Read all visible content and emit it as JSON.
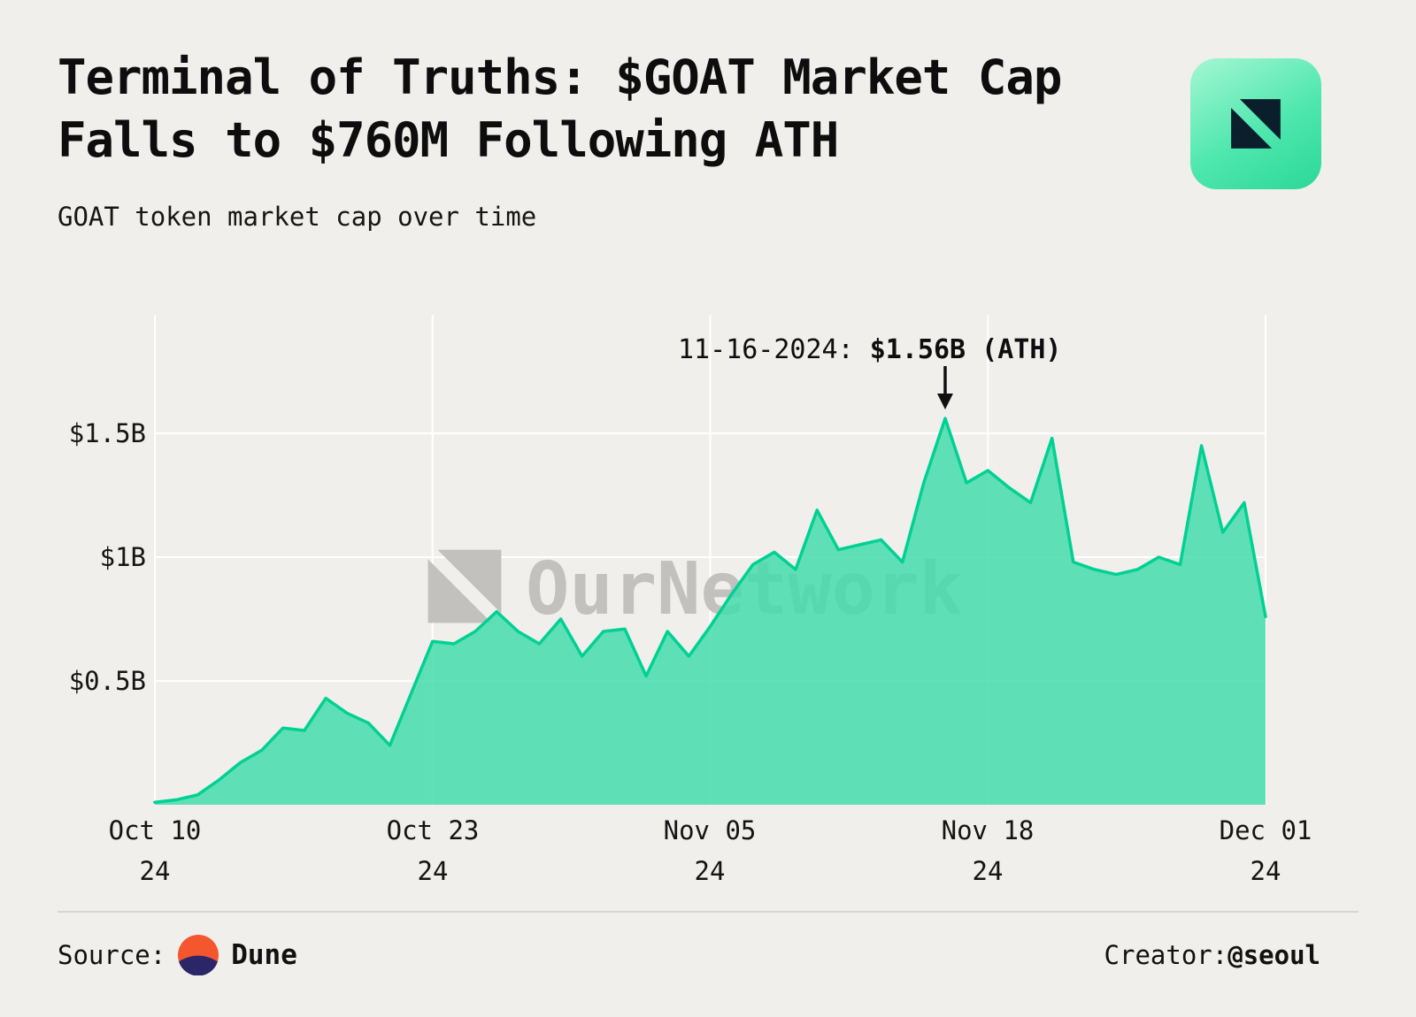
{
  "header": {
    "title_bold": "Terminal of Truths:",
    "title_rest": " $GOAT Market Cap Falls to $760M Following ATH",
    "subtitle": "GOAT token market cap over time"
  },
  "branding": {
    "logo_icon": "ournetwork-logo",
    "watermark_text": "OurNetwork"
  },
  "annotation": {
    "prefix": "11-16-2024: ",
    "value": "$1.56B (ATH)"
  },
  "footer": {
    "source_label": "Source:",
    "source_name": "Dune",
    "creator_label": "Creator: ",
    "creator_name": "@seoul"
  },
  "chart_data": {
    "type": "area",
    "title": "GOAT token market cap over time",
    "unit": "USD billions",
    "ylim": [
      0,
      1.7
    ],
    "grid": true,
    "colors": {
      "fill": "#45dcab",
      "stroke": "#00d193"
    },
    "x": [
      "2024-10-10",
      "2024-10-11",
      "2024-10-12",
      "2024-10-13",
      "2024-10-14",
      "2024-10-15",
      "2024-10-16",
      "2024-10-17",
      "2024-10-18",
      "2024-10-19",
      "2024-10-20",
      "2024-10-21",
      "2024-10-22",
      "2024-10-23",
      "2024-10-24",
      "2024-10-25",
      "2024-10-26",
      "2024-10-27",
      "2024-10-28",
      "2024-10-29",
      "2024-10-30",
      "2024-10-31",
      "2024-11-01",
      "2024-11-02",
      "2024-11-03",
      "2024-11-04",
      "2024-11-05",
      "2024-11-06",
      "2024-11-07",
      "2024-11-08",
      "2024-11-09",
      "2024-11-10",
      "2024-11-11",
      "2024-11-12",
      "2024-11-13",
      "2024-11-14",
      "2024-11-15",
      "2024-11-16",
      "2024-11-17",
      "2024-11-18",
      "2024-11-19",
      "2024-11-20",
      "2024-11-21",
      "2024-11-22",
      "2024-11-23",
      "2024-11-24",
      "2024-11-25",
      "2024-11-26",
      "2024-11-27",
      "2024-11-28",
      "2024-11-29",
      "2024-11-30",
      "2024-12-01"
    ],
    "values": [
      0.01,
      0.02,
      0.04,
      0.1,
      0.17,
      0.22,
      0.31,
      0.3,
      0.43,
      0.37,
      0.33,
      0.24,
      0.45,
      0.66,
      0.65,
      0.7,
      0.78,
      0.7,
      0.65,
      0.75,
      0.6,
      0.7,
      0.71,
      0.52,
      0.7,
      0.6,
      0.72,
      0.85,
      0.97,
      1.02,
      0.95,
      1.19,
      1.03,
      1.05,
      1.07,
      0.98,
      1.3,
      1.56,
      1.3,
      1.35,
      1.28,
      1.22,
      1.48,
      0.98,
      0.95,
      0.93,
      0.95,
      1.0,
      0.97,
      1.45,
      1.1,
      1.22,
      0.76
    ],
    "y_ticks": [
      {
        "value": 0.5,
        "label": "$0.5B"
      },
      {
        "value": 1.0,
        "label": "$1B"
      },
      {
        "value": 1.5,
        "label": "$1.5B"
      }
    ],
    "x_tick_labels": [
      {
        "index": 0,
        "date": "Oct 10",
        "year": "24"
      },
      {
        "index": 13,
        "date": "Oct 23",
        "year": "24"
      },
      {
        "index": 26,
        "date": "Nov 05",
        "year": "24"
      },
      {
        "index": 39,
        "date": "Nov 18",
        "year": "24"
      },
      {
        "index": 52,
        "date": "Dec 01",
        "year": "24"
      }
    ],
    "ath": {
      "date": "2024-11-16",
      "value": 1.56,
      "index": 37,
      "label": "11-16-2024: $1.56B (ATH)"
    }
  }
}
